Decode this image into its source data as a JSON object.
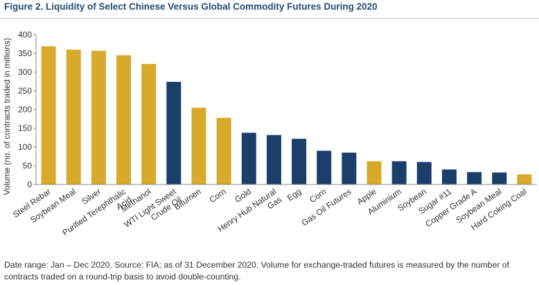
{
  "header": {
    "title": "Figure 2. Liquidity of Select Chinese Versus Global Commodity Futures During 2020"
  },
  "footer": {
    "note": "Date range: Jan – Dec 2020. Source: FIA; as of 31 December 2020. Volume for exchange-traded futures is measured by the number of contracts traded on a round-trip basis to avoid double-counting."
  },
  "colors": {
    "chinese": "#d9a92c",
    "global": "#1b3f6b"
  },
  "chart_data": {
    "type": "bar",
    "title": "Figure 2. Liquidity of Select Chinese Versus Global Commodity Futures During 2020",
    "xlabel": "",
    "ylabel": "Volume (no. of contracts traded in millions)",
    "ylim": [
      0,
      400
    ],
    "yticks": [
      0,
      50,
      100,
      150,
      200,
      250,
      300,
      350,
      400
    ],
    "grid": false,
    "categories": [
      [
        "Steel Rebar"
      ],
      [
        "Soybean Meal"
      ],
      [
        "Silver"
      ],
      [
        "Purified Terephthalic",
        "Acid"
      ],
      [
        "Methanol"
      ],
      [
        "WTI Light Sweet",
        "Crude Oil"
      ],
      [
        "Bitumen"
      ],
      [
        "Corn"
      ],
      [
        "Gold"
      ],
      [
        "Henry Hub Natural",
        "Gas"
      ],
      [
        "Egg"
      ],
      [
        "Corn"
      ],
      [
        "Gas Oil Futures"
      ],
      [
        "Apple"
      ],
      [
        "Aluminium"
      ],
      [
        "Soybean"
      ],
      [
        "Sugar #11"
      ],
      [
        "Copper Grade A"
      ],
      [
        "Soybean Meal"
      ],
      [
        "Hard Coking Coal"
      ]
    ],
    "values": [
      369,
      360,
      357,
      345,
      322,
      274,
      205,
      178,
      138,
      132,
      122,
      90,
      85,
      62,
      62,
      60,
      40,
      33,
      32,
      27
    ],
    "groups": [
      "chinese",
      "chinese",
      "chinese",
      "chinese",
      "chinese",
      "global",
      "chinese",
      "chinese",
      "global",
      "global",
      "global",
      "global",
      "global",
      "chinese",
      "global",
      "global",
      "global",
      "global",
      "global",
      "chinese"
    ]
  }
}
